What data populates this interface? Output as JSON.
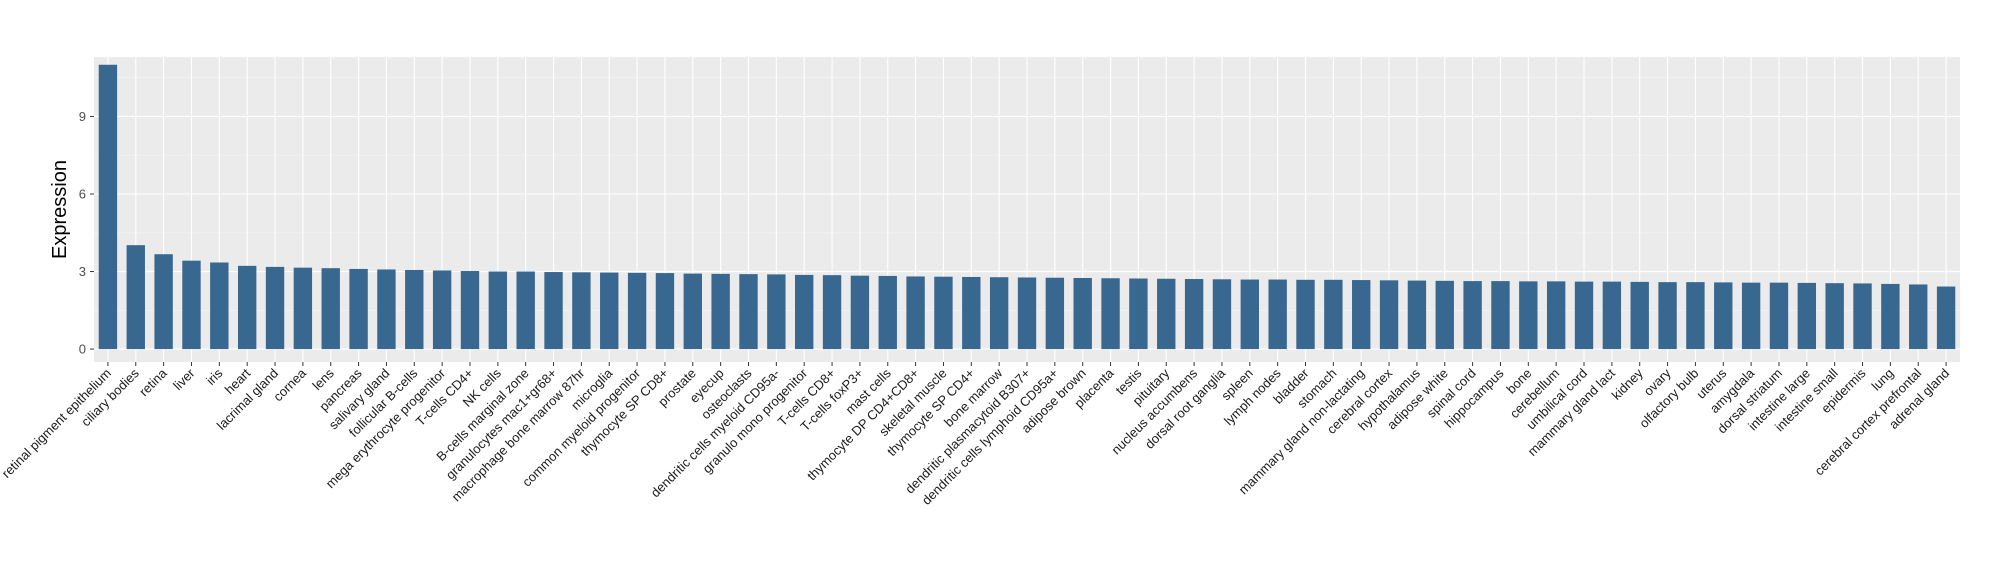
{
  "chart_data": {
    "type": "bar",
    "title": "",
    "xlabel": "",
    "ylabel": "Expression",
    "ylim": [
      -0.5,
      11.3
    ],
    "yticks": [
      0,
      3,
      6,
      9
    ],
    "grid": true,
    "colors": {
      "bar": "#386890",
      "panel": "#ebebeb",
      "grid_major": "#ffffff",
      "grid_minor": "#f5f5f5"
    },
    "categories": [
      "retinal pigment epithelium",
      "ciliary bodies",
      "retina",
      "liver",
      "iris",
      "heart",
      "lacrimal gland",
      "cornea",
      "lens",
      "pancreas",
      "salivary gland",
      "follicular B-cells",
      "mega erythrocyte progenitor",
      "T-cells CD4+",
      "NK cells",
      "B-cells marginal zone",
      "granulocytes mac1+gr68+",
      "macrophage bone marrow 87hr",
      "microglia",
      "common myeloid progenitor",
      "thymocyte SP CD8+",
      "prostate",
      "eyecup",
      "osteoclasts",
      "dendritic cells myeloid CD95a-",
      "granulo mono progenitor",
      "T-cells CD8+",
      "T-cells foxP3+",
      "mast cells",
      "thymocyte DP CD4+CD8+",
      "skeletal muscle",
      "thymocyte SP CD4+",
      "bone marrow",
      "dendritic plasmacytoid B307+",
      "dendritic cells lymphoid CD95a+",
      "adipose brown",
      "placenta",
      "testis",
      "pituitary",
      "nucleus accumbens",
      "dorsal root ganglia",
      "spleen",
      "lymph nodes",
      "bladder",
      "stomach",
      "mammary gland non-lactating",
      "cerebral cortex",
      "hypothalamus",
      "adipose white",
      "spinal cord",
      "hippocampus",
      "bone",
      "cerebellum",
      "umbilical cord",
      "mammary gland  lact",
      "kidney",
      "ovary",
      "olfactory bulb",
      "uterus",
      "amygdala",
      "dorsal striatum",
      "intestine large",
      "intestine small",
      "epidermis",
      "lung",
      "cerebral cortex prefrontal",
      "adrenal gland"
    ],
    "values": [
      11.0,
      4.02,
      3.67,
      3.42,
      3.35,
      3.22,
      3.18,
      3.15,
      3.13,
      3.1,
      3.08,
      3.06,
      3.04,
      3.02,
      3.0,
      3.0,
      2.98,
      2.97,
      2.96,
      2.95,
      2.94,
      2.92,
      2.91,
      2.9,
      2.89,
      2.87,
      2.86,
      2.84,
      2.83,
      2.81,
      2.8,
      2.79,
      2.78,
      2.77,
      2.76,
      2.75,
      2.74,
      2.73,
      2.72,
      2.71,
      2.7,
      2.69,
      2.69,
      2.68,
      2.68,
      2.67,
      2.66,
      2.65,
      2.64,
      2.63,
      2.63,
      2.62,
      2.62,
      2.61,
      2.61,
      2.6,
      2.59,
      2.59,
      2.58,
      2.57,
      2.57,
      2.56,
      2.55,
      2.54,
      2.52,
      2.5,
      2.42
    ]
  }
}
